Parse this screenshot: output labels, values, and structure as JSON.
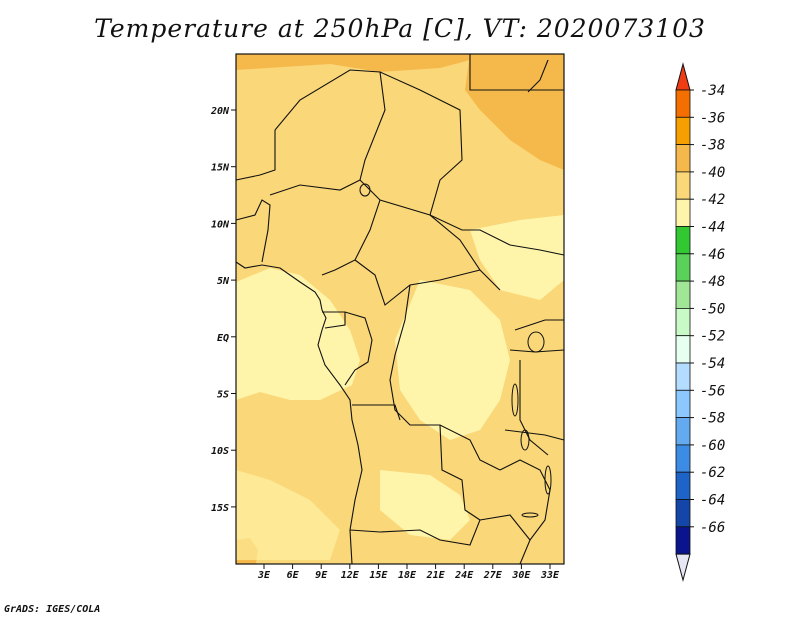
{
  "title": "Temperature at 250hPa [C], VT: 2020073103",
  "credit": "GrADS: IGES/COLA",
  "map": {
    "lat_labels": [
      "20N",
      "15N",
      "10N",
      "5N",
      "EQ",
      "5S",
      "10S",
      "15S"
    ],
    "lon_labels": [
      "3E",
      "6E",
      "9E",
      "12E",
      "15E",
      "18E",
      "21E",
      "24E",
      "27E",
      "30E",
      "33E"
    ]
  },
  "colorbar": {
    "labels": [
      "-34",
      "-36",
      "-38",
      "-40",
      "-42",
      "-44",
      "-46",
      "-48",
      "-50",
      "-52",
      "-54",
      "-56",
      "-58",
      "-60",
      "-62",
      "-64",
      "-66"
    ],
    "colors": [
      "#f03c14",
      "#f56e00",
      "#f5a000",
      "#f5b94b",
      "#fad778",
      "#fff5aa",
      "#32c832",
      "#5ad25a",
      "#a0e696",
      "#c8fac8",
      "#e6fff0",
      "#b4dcff",
      "#8cc8ff",
      "#64aaf0",
      "#3c8ce6",
      "#1e64c8",
      "#1446aa",
      "#0a148c",
      "#e6e6f5"
    ]
  }
}
